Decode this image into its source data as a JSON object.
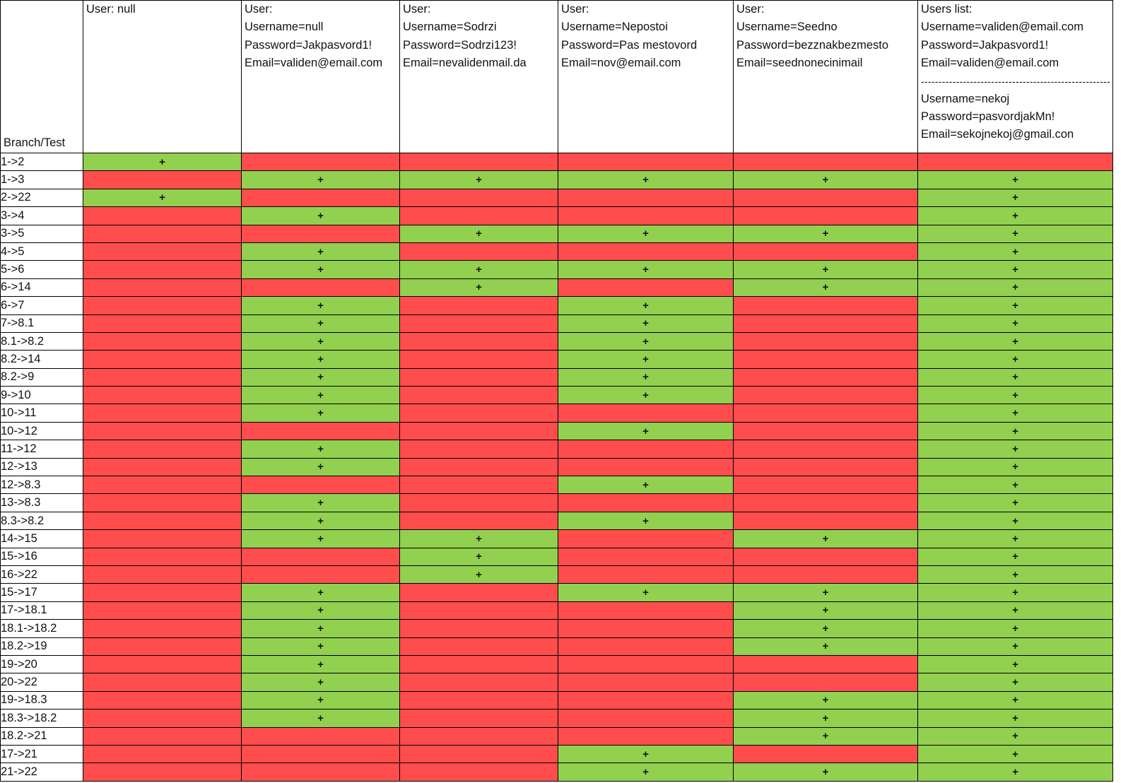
{
  "corner_label": "Branch/Test",
  "columns": [
    {
      "lines": [
        "User: null"
      ]
    },
    {
      "lines": [
        "User:",
        "Username=null",
        "Password=Jakpasvord1!",
        "Email=validen@email.com"
      ]
    },
    {
      "lines": [
        "User:",
        "Username=Sodrzi",
        "Password=Sodrzi123!",
        "Email=nevalidenmail.da"
      ]
    },
    {
      "lines": [
        "User:",
        "Username=Nepostoi",
        "Password=Pas mestovord",
        "Email=nov@email.com"
      ]
    },
    {
      "lines": [
        "User:",
        "Username=Seedno",
        "Password=bezznakbezmesto",
        "Email=seednonecinimail"
      ]
    },
    {
      "lines": [
        "Users list:",
        "Username=validen@email.com",
        "Password=Jakpasvord1!",
        "Email=validen@email.com"
      ],
      "separator": "------------------------------------------------------",
      "lines2": [
        "Username=nekoj",
        "Password=pasvordjakMn!",
        "Email=sekojnekoj@gmail.con"
      ]
    }
  ],
  "pass_mark": "+",
  "colors": {
    "pass": "#92d050",
    "fail": "#ff4d4d"
  },
  "rows": [
    {
      "branch": "1->2",
      "cells": [
        1,
        0,
        0,
        0,
        0,
        0
      ]
    },
    {
      "branch": "1->3",
      "cells": [
        0,
        1,
        1,
        1,
        1,
        1
      ]
    },
    {
      "branch": "2->22",
      "cells": [
        1,
        0,
        0,
        0,
        0,
        1
      ]
    },
    {
      "branch": "3->4",
      "cells": [
        0,
        1,
        0,
        0,
        0,
        1
      ]
    },
    {
      "branch": "3->5",
      "cells": [
        0,
        0,
        1,
        1,
        1,
        1
      ]
    },
    {
      "branch": "4->5",
      "cells": [
        0,
        1,
        0,
        0,
        0,
        1
      ]
    },
    {
      "branch": "5->6",
      "cells": [
        0,
        1,
        1,
        1,
        1,
        1
      ]
    },
    {
      "branch": "6->14",
      "cells": [
        0,
        0,
        1,
        0,
        1,
        1
      ]
    },
    {
      "branch": "6->7",
      "cells": [
        0,
        1,
        0,
        1,
        0,
        1
      ]
    },
    {
      "branch": "7->8.1",
      "cells": [
        0,
        1,
        0,
        1,
        0,
        1
      ]
    },
    {
      "branch": "8.1->8.2",
      "cells": [
        0,
        1,
        0,
        1,
        0,
        1
      ]
    },
    {
      "branch": "8.2->14",
      "cells": [
        0,
        1,
        0,
        1,
        0,
        1
      ]
    },
    {
      "branch": "8.2->9",
      "cells": [
        0,
        1,
        0,
        1,
        0,
        1
      ]
    },
    {
      "branch": "9->10",
      "cells": [
        0,
        1,
        0,
        1,
        0,
        1
      ]
    },
    {
      "branch": "10->11",
      "cells": [
        0,
        1,
        0,
        0,
        0,
        1
      ]
    },
    {
      "branch": "10->12",
      "cells": [
        0,
        0,
        0,
        1,
        0,
        1
      ]
    },
    {
      "branch": "11->12",
      "cells": [
        0,
        1,
        0,
        0,
        0,
        1
      ]
    },
    {
      "branch": "12->13",
      "cells": [
        0,
        1,
        0,
        0,
        0,
        1
      ]
    },
    {
      "branch": "12->8.3",
      "cells": [
        0,
        0,
        0,
        1,
        0,
        1
      ]
    },
    {
      "branch": "13->8.3",
      "cells": [
        0,
        1,
        0,
        0,
        0,
        1
      ]
    },
    {
      "branch": "8.3->8.2",
      "cells": [
        0,
        1,
        0,
        1,
        0,
        1
      ]
    },
    {
      "branch": "14->15",
      "cells": [
        0,
        1,
        1,
        0,
        1,
        1
      ]
    },
    {
      "branch": "15->16",
      "cells": [
        0,
        0,
        1,
        0,
        0,
        1
      ]
    },
    {
      "branch": "16->22",
      "cells": [
        0,
        0,
        1,
        0,
        0,
        1
      ]
    },
    {
      "branch": "15->17",
      "cells": [
        0,
        1,
        0,
        1,
        1,
        1
      ]
    },
    {
      "branch": "17->18.1",
      "cells": [
        0,
        1,
        0,
        0,
        1,
        1
      ]
    },
    {
      "branch": "18.1->18.2",
      "cells": [
        0,
        1,
        0,
        0,
        1,
        1
      ]
    },
    {
      "branch": "18.2->19",
      "cells": [
        0,
        1,
        0,
        0,
        1,
        1
      ]
    },
    {
      "branch": "19->20",
      "cells": [
        0,
        1,
        0,
        0,
        0,
        1
      ]
    },
    {
      "branch": "20->22",
      "cells": [
        0,
        1,
        0,
        0,
        0,
        1
      ]
    },
    {
      "branch": "19->18.3",
      "cells": [
        0,
        1,
        0,
        0,
        1,
        1
      ]
    },
    {
      "branch": "18.3->18.2",
      "cells": [
        0,
        1,
        0,
        0,
        1,
        1
      ]
    },
    {
      "branch": "18.2->21",
      "cells": [
        0,
        0,
        0,
        0,
        1,
        1
      ]
    },
    {
      "branch": "17->21",
      "cells": [
        0,
        0,
        0,
        1,
        0,
        1
      ]
    },
    {
      "branch": "21->22",
      "cells": [
        0,
        0,
        0,
        1,
        1,
        1
      ]
    }
  ]
}
